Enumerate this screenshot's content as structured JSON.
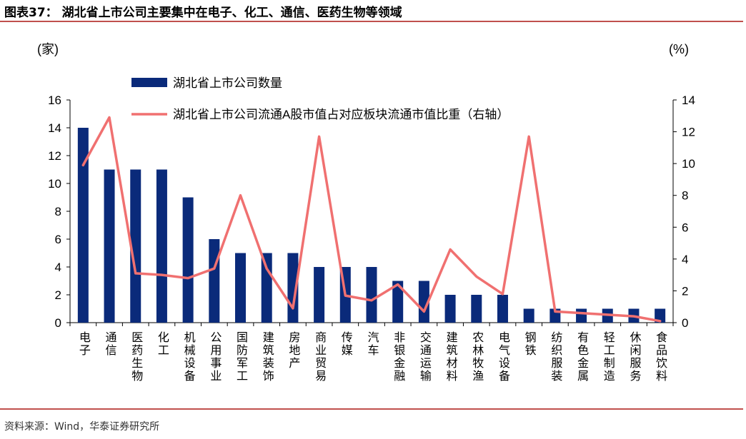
{
  "figure": {
    "title": "图表37：  湖北省上市公司主要集中在电子、化工、通信、医药生物等领域",
    "source": "资料来源：Wind，华泰证券研究所"
  },
  "colors": {
    "bar": "#0a2a7a",
    "line": "#f07070",
    "rule": "#c0504d"
  },
  "chart_data": {
    "type": "bar",
    "categories": [
      "电子",
      "通信",
      "医药生物",
      "化工",
      "机械设备",
      "公用事业",
      "国防军工",
      "建筑装饰",
      "房地产",
      "商业贸易",
      "传媒",
      "汽车",
      "非银金融",
      "交通运输",
      "建筑材料",
      "农林牧渔",
      "电气设备",
      "钢铁",
      "纺织服装",
      "有色金属",
      "轻工制造",
      "休闲服务",
      "食品饮料"
    ],
    "series": [
      {
        "name": "湖北省上市公司数量",
        "type": "bar",
        "axis": "left",
        "values": [
          14,
          11,
          11,
          11,
          9,
          6,
          5,
          5,
          5,
          4,
          4,
          4,
          3,
          3,
          2,
          2,
          2,
          1,
          1,
          1,
          1,
          1,
          1
        ]
      },
      {
        "name": "湖北省上市公司流通A股市值占对应板块流通市值比重（右轴）",
        "type": "line",
        "axis": "right",
        "values": [
          9.9,
          12.9,
          3.1,
          3.0,
          2.8,
          3.4,
          8.0,
          3.4,
          0.9,
          11.7,
          1.7,
          1.4,
          2.4,
          0.7,
          4.6,
          2.9,
          1.8,
          11.7,
          0.7,
          0.6,
          0.5,
          0.4,
          0.1
        ]
      }
    ],
    "yleft": {
      "unit": "(家)",
      "lim": [
        0,
        16
      ],
      "ticks": [
        0,
        2,
        4,
        6,
        8,
        10,
        12,
        14,
        16
      ]
    },
    "yright": {
      "unit": "(%)",
      "lim": [
        0,
        14
      ],
      "ticks": [
        0,
        2,
        4,
        6,
        8,
        10,
        12,
        14
      ]
    },
    "legend": {
      "placement": "top-left",
      "items": [
        "湖北省上市公司数量",
        "湖北省上市公司流通A股市值占对应板块流通市值比重（右轴）"
      ]
    }
  }
}
